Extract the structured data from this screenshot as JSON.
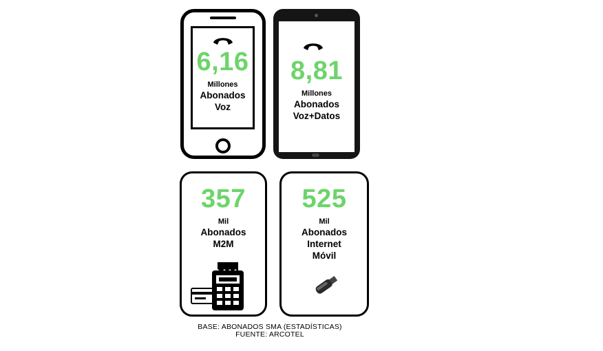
{
  "cards": [
    {
      "value": "6,16",
      "unit": "Millones",
      "line1": "Abonados",
      "line2": "Voz",
      "icon": "phone-handset-icon"
    },
    {
      "value": "8,81",
      "unit": "Millones",
      "line1": "Abonados",
      "line2": "Voz+Datos",
      "icon": "phone-handset-icon"
    },
    {
      "value": "357",
      "unit": "Mil",
      "line1": "Abonados",
      "line2": "M2M",
      "icon": "pos-terminal-icon"
    },
    {
      "value": "525",
      "unit": "Mil",
      "line1": "Abonados",
      "line2": "Internet",
      "line3": "Móvil",
      "icon": "usb-modem-icon"
    }
  ],
  "footer": {
    "base": "BASE: ABONADOS SMA (ESTADÍSTICAS)",
    "source": "FUENTE: ARCOTEL"
  },
  "colors": {
    "value_green": "#6ed46a",
    "outline": "#000000",
    "tablet_body": "#151515"
  }
}
